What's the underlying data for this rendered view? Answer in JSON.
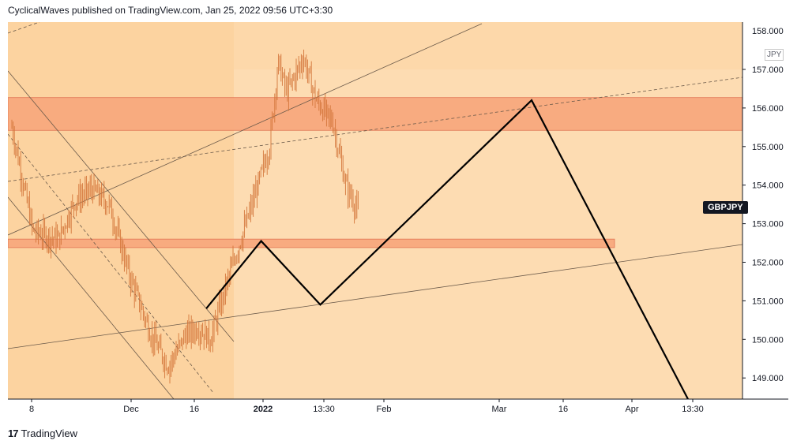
{
  "header": {
    "text": "CyclicalWaves published on TradingView.com, Jan 25, 2022 09:56 UTC+3:30"
  },
  "symbol": {
    "name": "GBPJPY",
    "currency": "JPY"
  },
  "footer": {
    "brand": "TradingView",
    "logo_icon": "tradingview-logo-icon"
  },
  "colors": {
    "background": "#fddcb2",
    "panel_left": "#fcd3a0",
    "resistance_zone": "#f8a97e",
    "support_zone": "#f8a97e",
    "candle": "#d4763b",
    "projection": "#000000"
  },
  "chart_data": {
    "type": "line",
    "title": "",
    "y_axis": {
      "label": "",
      "ticks": [
        "149.000",
        "150.000",
        "151.000",
        "152.000",
        "153.000",
        "154.000",
        "155.000",
        "156.000",
        "157.000"
      ],
      "top_label_partial": "158.000",
      "range": [
        148.4,
        158.3
      ]
    },
    "x_axis": {
      "ticks": [
        "8",
        "Dec",
        "16",
        "2022",
        "13:30",
        "Feb",
        "Mar",
        "16",
        "Apr",
        "13:30"
      ]
    },
    "zones": [
      {
        "name": "resistance",
        "y_range": [
          155.42,
          156.27
        ]
      },
      {
        "name": "support",
        "y_range": [
          152.38,
          152.6
        ]
      }
    ],
    "series": [
      {
        "values_description": "price path approximation",
        "x": [
          "Nov 3",
          "Nov 8",
          "Nov 14",
          "Nov 18",
          "Nov 22",
          "Nov 26",
          "Dec 1",
          "Dec 6",
          "Dec 10",
          "Dec 14",
          "Dec 17",
          "Dec 20",
          "Dec 24",
          "Dec 29",
          "Jan 3",
          "Jan 5",
          "Jan 7",
          "Jan 11",
          "Jan 14",
          "Jan 18",
          "Jan 21",
          "Jan 24"
        ],
        "y": [
          155.5,
          152.8,
          152.6,
          153.6,
          153.9,
          153.5,
          151.6,
          150.1,
          149.3,
          150.1,
          150.3,
          150.0,
          151.5,
          153.2,
          155.0,
          157.2,
          156.4,
          157.3,
          156.2,
          155.6,
          154.0,
          153.3
        ]
      },
      {
        "name": "projection",
        "x": [
          "Dec 19",
          "Jan 1",
          "Jan 15",
          "Mar 6",
          "Apr 12"
        ],
        "y": [
          150.8,
          152.55,
          150.9,
          156.2,
          148.4
        ]
      }
    ],
    "grid": false,
    "legend": "none"
  }
}
